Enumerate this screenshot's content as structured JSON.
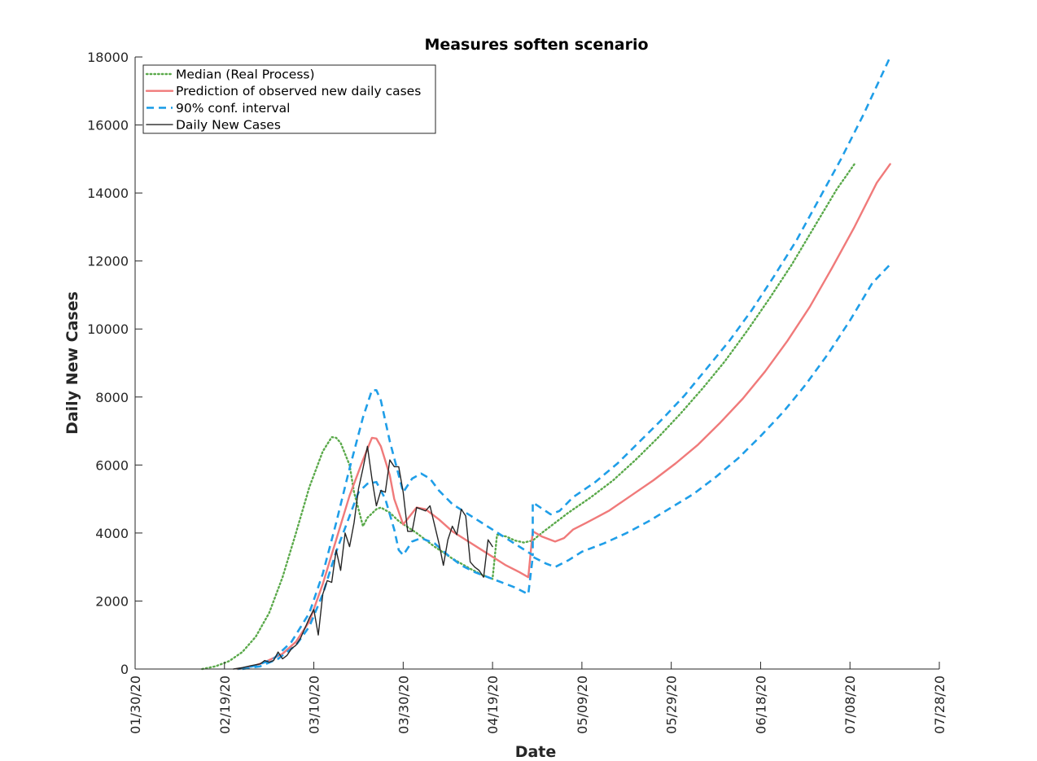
{
  "chart_data": {
    "type": "line",
    "title": "Measures soften scenario",
    "xlabel": "Date",
    "ylabel": "Daily New Cases",
    "x_axis": "date",
    "xlim": [
      "2020-01-30",
      "2020-07-28"
    ],
    "ylim": [
      0,
      18000
    ],
    "x_ticks": [
      "2020-01-30",
      "2020-02-19",
      "2020-03-10",
      "2020-03-30",
      "2020-04-19",
      "2020-05-09",
      "2020-05-29",
      "2020-06-18",
      "2020-07-08",
      "2020-07-28"
    ],
    "x_tick_labels": [
      "01/30/20",
      "02/19/20",
      "03/10/20",
      "03/30/20",
      "04/19/20",
      "05/09/20",
      "05/29/20",
      "06/18/20",
      "07/08/20",
      "07/28/20"
    ],
    "y_ticks": [
      0,
      2000,
      4000,
      6000,
      8000,
      10000,
      12000,
      14000,
      16000,
      18000
    ],
    "y_tick_labels": [
      "0",
      "2000",
      "4000",
      "6000",
      "8000",
      "10000",
      "12000",
      "14000",
      "16000",
      "18000"
    ],
    "grid": false,
    "legend_position": "top-left",
    "series": [
      {
        "name": "Median (Real Process)",
        "color": "#5aa94a",
        "style": "dotted",
        "points": [
          [
            "2020-02-14",
            0
          ],
          [
            "2020-02-17",
            80
          ],
          [
            "2020-02-20",
            230
          ],
          [
            "2020-02-23",
            500
          ],
          [
            "2020-02-26",
            950
          ],
          [
            "2020-02-29",
            1650
          ],
          [
            "2020-03-03",
            2700
          ],
          [
            "2020-03-06",
            4000
          ],
          [
            "2020-03-09",
            5350
          ],
          [
            "2020-03-12",
            6400
          ],
          [
            "2020-03-14",
            6820
          ],
          [
            "2020-03-15",
            6800
          ],
          [
            "2020-03-16",
            6650
          ],
          [
            "2020-03-18",
            6000
          ],
          [
            "2020-03-19",
            5200
          ],
          [
            "2020-03-20",
            4700
          ],
          [
            "2020-03-21",
            4200
          ],
          [
            "2020-03-22",
            4450
          ],
          [
            "2020-03-24",
            4700
          ],
          [
            "2020-03-25",
            4750
          ],
          [
            "2020-03-27",
            4600
          ],
          [
            "2020-03-29",
            4350
          ],
          [
            "2020-04-02",
            4000
          ],
          [
            "2020-04-06",
            3600
          ],
          [
            "2020-04-10",
            3250
          ],
          [
            "2020-04-14",
            2950
          ],
          [
            "2020-04-17",
            2750
          ],
          [
            "2020-04-19",
            2650
          ],
          [
            "2020-04-20",
            3950
          ],
          [
            "2020-04-22",
            3900
          ],
          [
            "2020-04-24",
            3780
          ],
          [
            "2020-04-26",
            3720
          ],
          [
            "2020-04-28",
            3780
          ],
          [
            "2020-04-30",
            4000
          ],
          [
            "2020-05-03",
            4300
          ],
          [
            "2020-05-06",
            4600
          ],
          [
            "2020-05-11",
            5050
          ],
          [
            "2020-05-16",
            5550
          ],
          [
            "2020-05-21",
            6150
          ],
          [
            "2020-05-26",
            6800
          ],
          [
            "2020-05-31",
            7500
          ],
          [
            "2020-06-05",
            8250
          ],
          [
            "2020-06-10",
            9050
          ],
          [
            "2020-06-15",
            9950
          ],
          [
            "2020-06-20",
            10900
          ],
          [
            "2020-06-25",
            11900
          ],
          [
            "2020-06-30",
            13000
          ],
          [
            "2020-07-05",
            14100
          ],
          [
            "2020-07-09",
            14850
          ]
        ]
      },
      {
        "name": "Prediction of observed new daily cases",
        "color": "#f07a7a",
        "style": "solid",
        "points": [
          [
            "2020-02-22",
            0
          ],
          [
            "2020-02-25",
            70
          ],
          [
            "2020-02-28",
            200
          ],
          [
            "2020-03-03",
            450
          ],
          [
            "2020-03-06",
            800
          ],
          [
            "2020-03-09",
            1400
          ],
          [
            "2020-03-12",
            2500
          ],
          [
            "2020-03-15",
            3800
          ],
          [
            "2020-03-18",
            5100
          ],
          [
            "2020-03-21",
            6150
          ],
          [
            "2020-03-23",
            6800
          ],
          [
            "2020-03-24",
            6780
          ],
          [
            "2020-03-25",
            6550
          ],
          [
            "2020-03-27",
            5700
          ],
          [
            "2020-03-28",
            5000
          ],
          [
            "2020-03-30",
            4250
          ],
          [
            "2020-04-02",
            4750
          ],
          [
            "2020-04-04",
            4700
          ],
          [
            "2020-04-07",
            4400
          ],
          [
            "2020-04-10",
            4050
          ],
          [
            "2020-04-13",
            3800
          ],
          [
            "2020-04-16",
            3550
          ],
          [
            "2020-04-19",
            3300
          ],
          [
            "2020-04-22",
            3050
          ],
          [
            "2020-04-25",
            2850
          ],
          [
            "2020-04-27",
            2700
          ],
          [
            "2020-04-28",
            4050
          ],
          [
            "2020-04-30",
            3900
          ],
          [
            "2020-05-03",
            3750
          ],
          [
            "2020-05-05",
            3850
          ],
          [
            "2020-05-07",
            4100
          ],
          [
            "2020-05-10",
            4300
          ],
          [
            "2020-05-15",
            4650
          ],
          [
            "2020-05-20",
            5100
          ],
          [
            "2020-05-25",
            5550
          ],
          [
            "2020-05-30",
            6050
          ],
          [
            "2020-06-04",
            6600
          ],
          [
            "2020-06-09",
            7250
          ],
          [
            "2020-06-14",
            7950
          ],
          [
            "2020-06-19",
            8750
          ],
          [
            "2020-06-24",
            9650
          ],
          [
            "2020-06-29",
            10650
          ],
          [
            "2020-07-04",
            11800
          ],
          [
            "2020-07-09",
            13000
          ],
          [
            "2020-07-14",
            14300
          ],
          [
            "2020-07-17",
            14850
          ]
        ]
      },
      {
        "name": "90% conf. interval",
        "color": "#1f9ee8",
        "style": "dashed",
        "points": [
          [
            "2020-02-22",
            0
          ],
          [
            "2020-02-26",
            100
          ],
          [
            "2020-03-01",
            300
          ],
          [
            "2020-03-05",
            800
          ],
          [
            "2020-03-09",
            1650
          ],
          [
            "2020-03-12",
            2800
          ],
          [
            "2020-03-15",
            4300
          ],
          [
            "2020-03-18",
            5900
          ],
          [
            "2020-03-21",
            7400
          ],
          [
            "2020-03-23",
            8200
          ],
          [
            "2020-03-24",
            8200
          ],
          [
            "2020-03-25",
            7900
          ],
          [
            "2020-03-27",
            6700
          ],
          [
            "2020-03-29",
            5700
          ],
          [
            "2020-03-30",
            5200
          ],
          [
            "2020-04-01",
            5600
          ],
          [
            "2020-04-03",
            5750
          ],
          [
            "2020-04-05",
            5600
          ],
          [
            "2020-04-07",
            5250
          ],
          [
            "2020-04-10",
            4850
          ],
          [
            "2020-04-13",
            4600
          ],
          [
            "2020-04-16",
            4350
          ],
          [
            "2020-04-19",
            4100
          ],
          [
            "2020-04-22",
            3850
          ],
          [
            "2020-04-25",
            3600
          ],
          [
            "2020-04-28",
            3350
          ],
          [
            "2020-04-28",
            4900
          ],
          [
            "2020-05-02",
            4550
          ],
          [
            "2020-05-04",
            4650
          ],
          [
            "2020-05-07",
            5050
          ],
          [
            "2020-05-12",
            5500
          ],
          [
            "2020-05-17",
            6050
          ],
          [
            "2020-05-22",
            6700
          ],
          [
            "2020-05-27",
            7350
          ],
          [
            "2020-06-01",
            8050
          ],
          [
            "2020-06-06",
            8850
          ],
          [
            "2020-06-11",
            9650
          ],
          [
            "2020-06-16",
            10550
          ],
          [
            "2020-06-21",
            11550
          ],
          [
            "2020-06-26",
            12600
          ],
          [
            "2020-07-01",
            13800
          ],
          [
            "2020-07-06",
            15000
          ],
          [
            "2020-07-11",
            16300
          ],
          [
            "2020-07-17",
            18000
          ]
        ]
      },
      {
        "name": "",
        "legend_of": "90% conf. interval",
        "color": "#1f9ee8",
        "style": "dashed",
        "points": [
          [
            "2020-02-23",
            0
          ],
          [
            "2020-02-27",
            80
          ],
          [
            "2020-03-02",
            300
          ],
          [
            "2020-03-06",
            700
          ],
          [
            "2020-03-09",
            1250
          ],
          [
            "2020-03-12",
            2200
          ],
          [
            "2020-03-15",
            3450
          ],
          [
            "2020-03-18",
            4500
          ],
          [
            "2020-03-20",
            5200
          ],
          [
            "2020-03-22",
            5450
          ],
          [
            "2020-03-24",
            5500
          ],
          [
            "2020-03-26",
            5000
          ],
          [
            "2020-03-28",
            4100
          ],
          [
            "2020-03-29",
            3500
          ],
          [
            "2020-03-30",
            3350
          ],
          [
            "2020-04-01",
            3750
          ],
          [
            "2020-04-03",
            3850
          ],
          [
            "2020-04-06",
            3700
          ],
          [
            "2020-04-09",
            3350
          ],
          [
            "2020-04-12",
            3050
          ],
          [
            "2020-04-15",
            2850
          ],
          [
            "2020-04-18",
            2700
          ],
          [
            "2020-04-21",
            2550
          ],
          [
            "2020-04-24",
            2400
          ],
          [
            "2020-04-27",
            2200
          ],
          [
            "2020-04-28",
            3300
          ],
          [
            "2020-05-01",
            3100
          ],
          [
            "2020-05-03",
            3000
          ],
          [
            "2020-05-06",
            3200
          ],
          [
            "2020-05-09",
            3450
          ],
          [
            "2020-05-14",
            3700
          ],
          [
            "2020-05-19",
            4000
          ],
          [
            "2020-05-24",
            4350
          ],
          [
            "2020-05-29",
            4750
          ],
          [
            "2020-06-03",
            5150
          ],
          [
            "2020-06-08",
            5650
          ],
          [
            "2020-06-13",
            6200
          ],
          [
            "2020-06-18",
            6850
          ],
          [
            "2020-06-23",
            7550
          ],
          [
            "2020-06-28",
            8350
          ],
          [
            "2020-07-03",
            9250
          ],
          [
            "2020-07-08",
            10250
          ],
          [
            "2020-07-13",
            11350
          ],
          [
            "2020-07-17",
            11900
          ]
        ]
      },
      {
        "name": "Daily New Cases",
        "color": "#262626",
        "style": "solid",
        "points": [
          [
            "2020-02-21",
            0
          ],
          [
            "2020-02-23",
            40
          ],
          [
            "2020-02-25",
            100
          ],
          [
            "2020-02-27",
            150
          ],
          [
            "2020-02-28",
            250
          ],
          [
            "2020-02-29",
            200
          ],
          [
            "2020-03-01",
            250
          ],
          [
            "2020-03-02",
            500
          ],
          [
            "2020-03-03",
            300
          ],
          [
            "2020-03-04",
            400
          ],
          [
            "2020-03-05",
            600
          ],
          [
            "2020-03-06",
            700
          ],
          [
            "2020-03-07",
            900
          ],
          [
            "2020-03-08",
            1200
          ],
          [
            "2020-03-09",
            1500
          ],
          [
            "2020-03-10",
            1750
          ],
          [
            "2020-03-11",
            1000
          ],
          [
            "2020-03-12",
            2200
          ],
          [
            "2020-03-13",
            2600
          ],
          [
            "2020-03-14",
            2550
          ],
          [
            "2020-03-15",
            3500
          ],
          [
            "2020-03-16",
            2900
          ],
          [
            "2020-03-17",
            4000
          ],
          [
            "2020-03-18",
            3600
          ],
          [
            "2020-03-19",
            4300
          ],
          [
            "2020-03-20",
            5300
          ],
          [
            "2020-03-21",
            5900
          ],
          [
            "2020-03-22",
            6550
          ],
          [
            "2020-03-23",
            5600
          ],
          [
            "2020-03-24",
            4800
          ],
          [
            "2020-03-25",
            5250
          ],
          [
            "2020-03-26",
            5200
          ],
          [
            "2020-03-27",
            6150
          ],
          [
            "2020-03-28",
            5950
          ],
          [
            "2020-03-29",
            5950
          ],
          [
            "2020-03-30",
            5200
          ],
          [
            "2020-03-31",
            4050
          ],
          [
            "2020-04-01",
            4050
          ],
          [
            "2020-04-02",
            4750
          ],
          [
            "2020-04-03",
            4700
          ],
          [
            "2020-04-04",
            4650
          ],
          [
            "2020-04-05",
            4800
          ],
          [
            "2020-04-06",
            4250
          ],
          [
            "2020-04-07",
            3700
          ],
          [
            "2020-04-08",
            3050
          ],
          [
            "2020-04-09",
            3800
          ],
          [
            "2020-04-10",
            4200
          ],
          [
            "2020-04-11",
            3950
          ],
          [
            "2020-04-12",
            4700
          ],
          [
            "2020-04-13",
            4500
          ],
          [
            "2020-04-14",
            3150
          ],
          [
            "2020-04-15",
            3000
          ],
          [
            "2020-04-16",
            2900
          ],
          [
            "2020-04-17",
            2700
          ],
          [
            "2020-04-18",
            3800
          ],
          [
            "2020-04-19",
            3600
          ]
        ]
      }
    ]
  }
}
